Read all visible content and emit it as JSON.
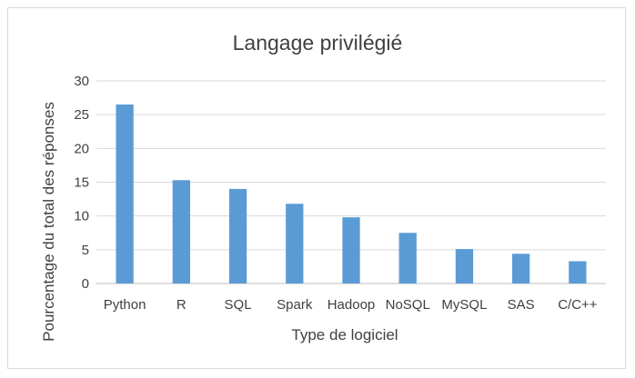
{
  "chart_data": {
    "type": "bar",
    "title": "Langage privilégié",
    "xlabel": "Type de logiciel",
    "ylabel": "Pourcentage du total des réponses",
    "categories": [
      "Python",
      "R",
      "SQL",
      "Spark",
      "Hadoop",
      "NoSQL",
      "MySQL",
      "SAS",
      "C/C++"
    ],
    "values": [
      26.5,
      15.3,
      14.0,
      11.8,
      9.8,
      7.5,
      5.1,
      4.4,
      3.3
    ],
    "ylim": [
      0,
      30
    ],
    "yticks": [
      "0",
      "5",
      "10",
      "15",
      "20",
      "25",
      "30"
    ],
    "grid": true,
    "legend": "none",
    "bar_color": "#5B9BD5"
  }
}
